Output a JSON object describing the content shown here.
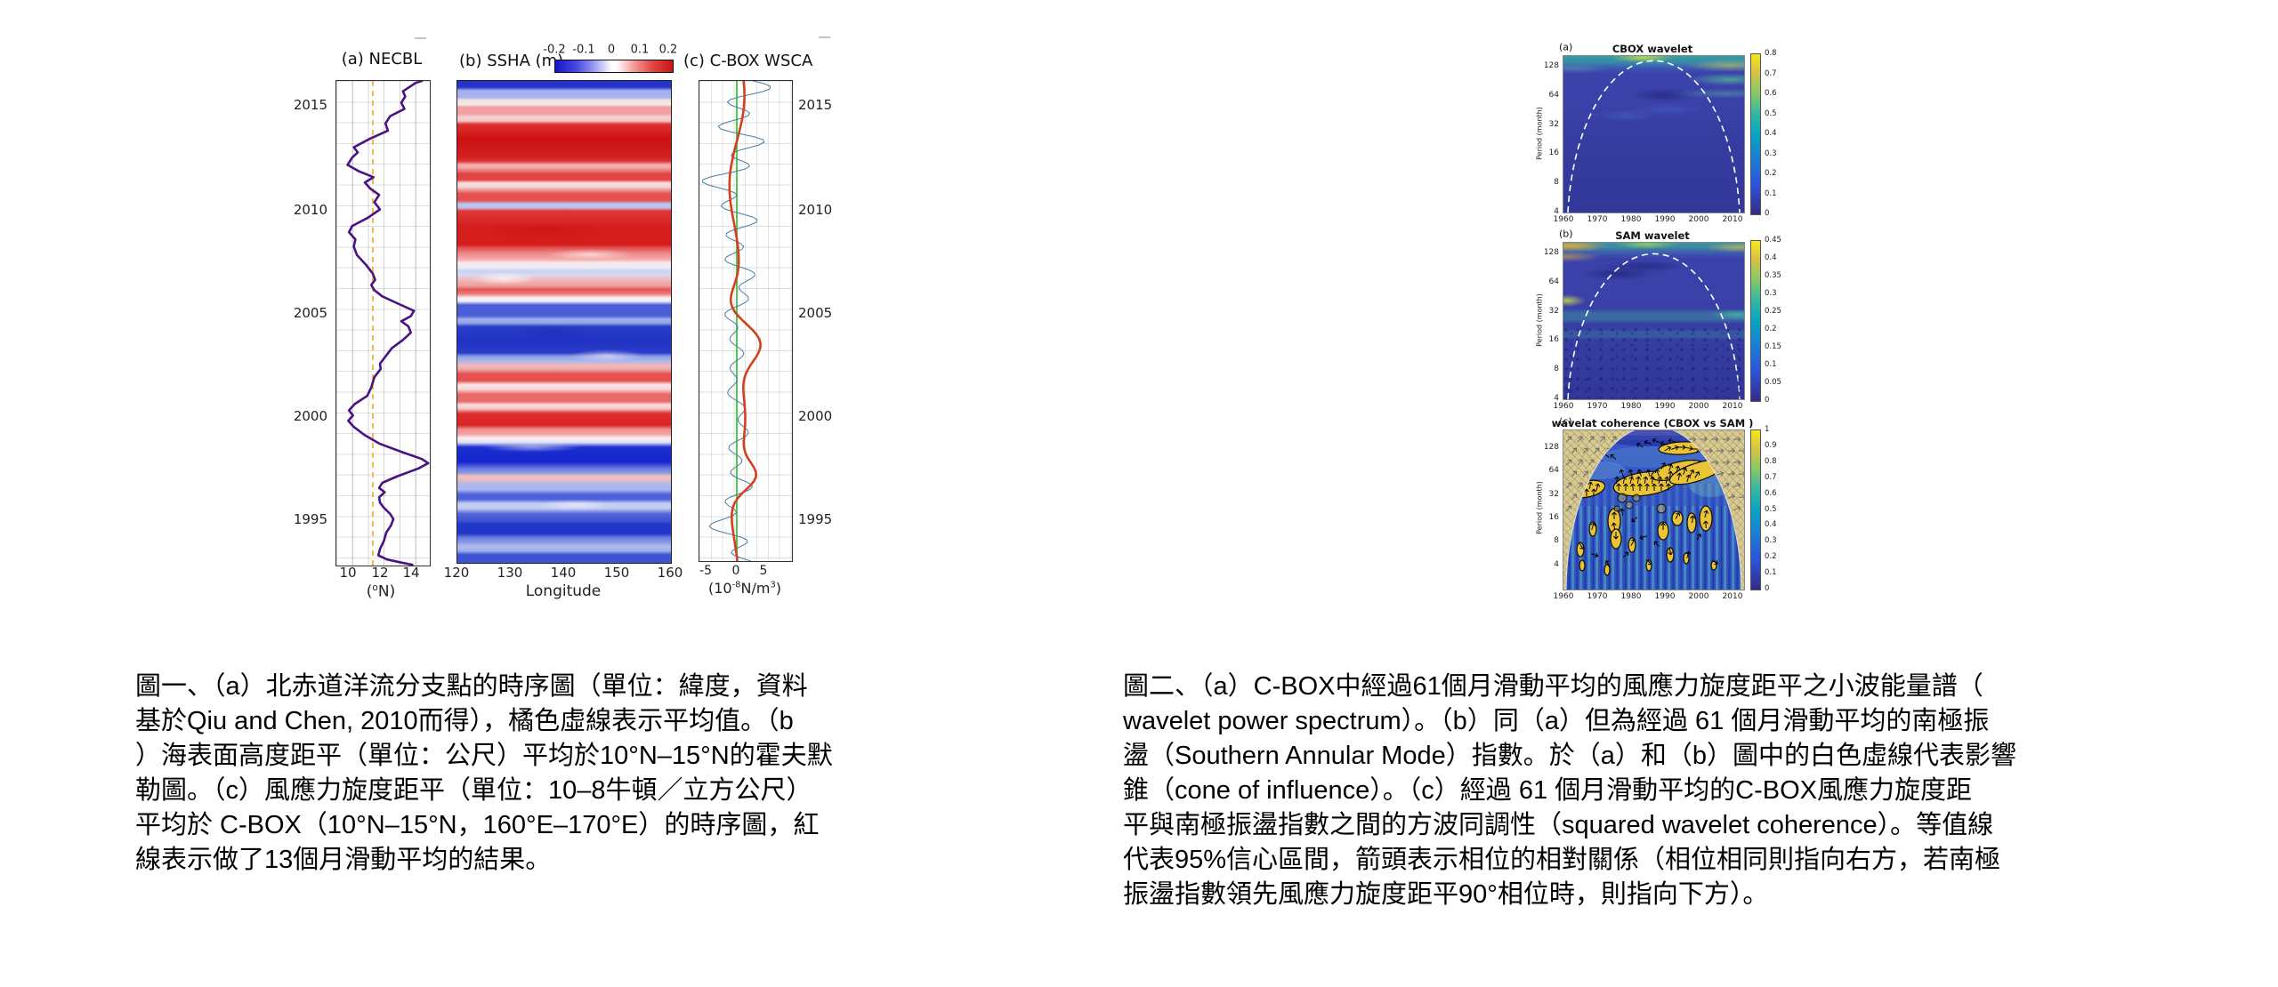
{
  "figure1": {
    "panel_a": {
      "title": "(a) NECBL",
      "x_ticks": [
        "10",
        "12",
        "14"
      ],
      "y_ticks": [
        "2015",
        "2010",
        "2005",
        "2000",
        "1995"
      ],
      "xlabel_pre": "(",
      "xlabel_sup": "o",
      "xlabel_post": "N)"
    },
    "panel_b": {
      "title": "(b) SSHA (m)",
      "colorbar_ticks": [
        "-0.2",
        "-0.1",
        "0",
        "0.1",
        "0.2"
      ],
      "x_ticks": [
        "120",
        "130",
        "140",
        "150",
        "160"
      ],
      "xlabel": "Longitude"
    },
    "panel_c": {
      "title": "(c) C-BOX WSCA",
      "x_ticks": [
        "-5",
        "0",
        "5"
      ],
      "y_ticks": [
        "2015",
        "2010",
        "2005",
        "2000",
        "1995"
      ],
      "unit_p1": "(10",
      "unit_sup1": "-8",
      "unit_p2": "N/m",
      "unit_sup2": "3",
      "unit_p3": ")"
    },
    "caption_lines": [
      "圖一、（a）北赤道洋流分支點的時序圖（單位：緯度，資料",
      "基於Qiu and Chen, 2010而得），橘色虛線表示平均值。（b",
      "）海表面高度距平（單位：公尺）平均於10°N–15°N的霍夫默",
      "勒圖。（c）風應力旋度距平（單位：10–8牛頓／立方公尺）",
      "平均於 C-BOX（10°N–15°N，160°E–170°E）的時序圖，紅",
      "線表示做了13個月滑動平均的結果。"
    ]
  },
  "figure2": {
    "x_ticks": [
      "1960",
      "1970",
      "1980",
      "1990",
      "2000",
      "2010"
    ],
    "y_ticks": [
      "128",
      "64",
      "32",
      "16",
      "8",
      "4"
    ],
    "ylabel": "Period (month)",
    "panels": [
      {
        "letter": "(a)",
        "title": "CBOX wavelet",
        "colorbar_ticks": [
          "0.8",
          "0.7",
          "0.6",
          "0.5",
          "0.4",
          "0.3",
          "0.2",
          "0.1",
          "0"
        ]
      },
      {
        "letter": "(b)",
        "title": "SAM wavelet",
        "colorbar_ticks": [
          "0.45",
          "0.4",
          "0.35",
          "0.3",
          "0.25",
          "0.2",
          "0.15",
          "0.1",
          "0.05",
          "0"
        ]
      },
      {
        "letter": "(c)",
        "title": "wavelat coherence (CBOX vs SAM )",
        "colorbar_ticks": [
          "1",
          "0.9",
          "0.8",
          "0.7",
          "0.6",
          "0.5",
          "0.4",
          "0.3",
          "0.2",
          "0.1",
          "0"
        ]
      }
    ],
    "caption_lines": [
      "圖二、（a）C-BOX中經過61個月滑動平均的風應力旋度距平之小波能量譜（",
      "wavelet power spectrum）。（b）同（a）但為經過 61 個月滑動平均的南極振",
      "盪（Southern Annular Mode）指數。於（a）和（b）圖中的白色虛線代表影響",
      "錐（cone of influence）。（c）經過 61 個月滑動平均的C-BOX風應力旋度距",
      "平與南極振盪指數之間的方波同調性（squared wavelet coherence）。等值線",
      "代表95%信心區間，箭頭表示相位的相對關係（相位相同則指向右方，若南極",
      "振盪指數領先風應力旋度距平90°相位時，則指向下方）。"
    ]
  },
  "chart_data": [
    {
      "type": "line",
      "title": "(a) NECBL",
      "xlabel": "(°N)",
      "xlim": [
        9.2,
        15.1
      ],
      "ylim": [
        1993,
        2016.3
      ],
      "x_ticks": [
        10,
        12,
        14
      ],
      "y_ticks": [
        1995,
        2000,
        2005,
        2010,
        2015
      ],
      "series": [
        {
          "name": "NEC bifurcation latitude",
          "color": "#4b1282"
        },
        {
          "name": "mean value (orange dashed vertical line)",
          "value": 11.6,
          "color": "#f5a623"
        }
      ],
      "note": "time on vertical axis, increasing upward"
    },
    {
      "type": "heatmap",
      "title": "(b) SSHA (m)",
      "xlabel": "Longitude",
      "xlim": [
        120,
        160
      ],
      "ylim": [
        1993,
        2016.3
      ],
      "colorbar": {
        "ticks": [
          -0.2,
          -0.1,
          0,
          0.1,
          0.2
        ],
        "palette": "blue-white-red"
      }
    },
    {
      "type": "line",
      "title": "(c) C-BOX WSCA",
      "xlabel": "(10^-8 N/m^3)",
      "xlim": [
        -6.3,
        10
      ],
      "x_ticks": [
        -5,
        0,
        5
      ],
      "ylim": [
        1993,
        2016.3
      ],
      "series": [
        {
          "name": "monthly wind stress curl anomaly",
          "color": "#4a7fa5"
        },
        {
          "name": "13-month running mean",
          "color": "#d2401e"
        },
        {
          "name": "zero reference line",
          "color": "#44cc44"
        }
      ]
    },
    {
      "type": "heatmap",
      "title": "CBOX wavelet",
      "xlim": [
        1960,
        2013
      ],
      "ylabel": "Period (month)",
      "y_ticks": [
        4,
        8,
        16,
        32,
        64,
        128
      ],
      "y_scale": "log2",
      "colorbar": {
        "min": 0,
        "max": 0.8
      },
      "annotation": "white dashed cone of influence"
    },
    {
      "type": "heatmap",
      "title": "SAM wavelet",
      "xlim": [
        1960,
        2013
      ],
      "ylabel": "Period (month)",
      "y_ticks": [
        4,
        8,
        16,
        32,
        64,
        128
      ],
      "y_scale": "log2",
      "colorbar": {
        "min": 0,
        "max": 0.45
      },
      "annotation": "white dashed cone of influence"
    },
    {
      "type": "heatmap",
      "title": "wavelat coherence (CBOX vs SAM )",
      "xlim": [
        1960,
        2013
      ],
      "ylabel": "Period (month)",
      "y_ticks": [
        4,
        8,
        16,
        32,
        64,
        128
      ],
      "y_scale": "log2",
      "colorbar": {
        "min": 0,
        "max": 1
      },
      "annotation": "95% significance contours with phase arrows"
    }
  ]
}
